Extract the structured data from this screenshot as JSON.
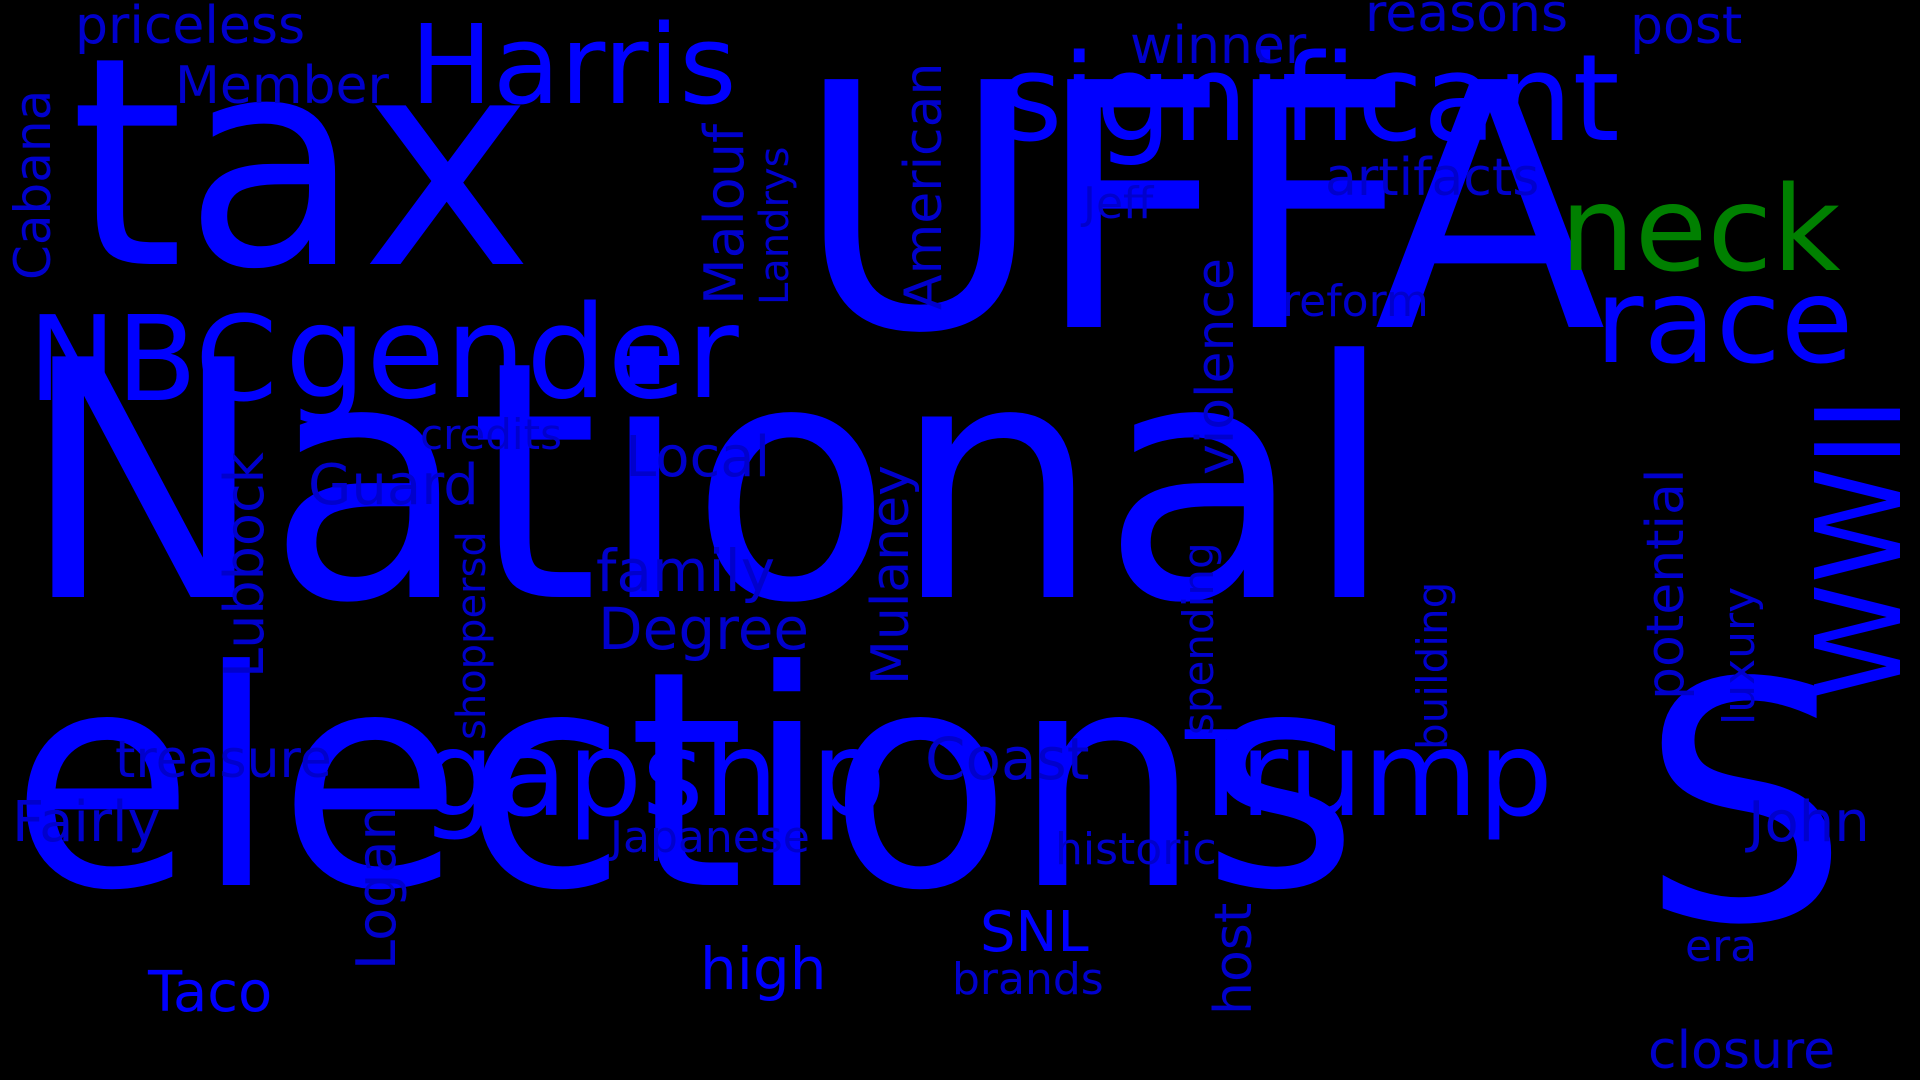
{
  "colors": {
    "background": "#000000",
    "primary": "#0000ff",
    "accent": "#008000"
  },
  "words": {
    "national": "National",
    "elections": "elections",
    "tax": "tax",
    "uffa": "UFFA",
    "s": "S",
    "harris": "Harris",
    "significant": "significant",
    "gender": "gender",
    "nbc": "NBC",
    "gapship": "gapship",
    "trump": "Trump",
    "neck": "neck",
    "race": "race",
    "wwii": "WWII",
    "priceless": "priceless",
    "member": "Member",
    "cabana": "Cabana",
    "malouf": "Malouf",
    "landrys": "Landrys",
    "american": "American",
    "winner": "winner",
    "reasons": "reasons",
    "post": "post",
    "artifacts": "artifacts",
    "jeff": "Jeff",
    "reform": "reform",
    "violence": "violence",
    "credits": "credits",
    "local": "Local",
    "guard": "Guard",
    "lubbock": "Lubbock",
    "family": "family",
    "degree": "Degree",
    "mulaney": "Mulaney",
    "shoppersd": "shoppersd",
    "spending": "spending",
    "building": "building",
    "potential": "potential",
    "luxury": "luxury",
    "treasure": "treasure",
    "coast": "Coast",
    "fairly": "Fairly",
    "logan": "Logan",
    "japanese": "Japanese",
    "historic": "historic",
    "john": "John",
    "host": "host",
    "snl": "SNL",
    "taco": "Taco",
    "high": "high",
    "brands": "brands",
    "era": "era",
    "closure": "closure"
  }
}
